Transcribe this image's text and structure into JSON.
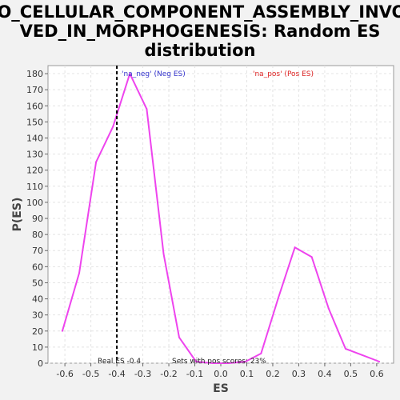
{
  "chart_data": {
    "type": "line",
    "title_lines": [
      "GO_CELLULAR_COMPONENT_ASSEMBLY_INVOL",
      "VED_IN_MORPHOGENESIS: Random ES",
      "distribution"
    ],
    "xlabel": "ES",
    "ylabel": "P(ES)",
    "xlim": [
      -0.665,
      0.665
    ],
    "ylim": [
      0,
      185
    ],
    "x_ticks": [
      -0.6,
      -0.5,
      -0.4,
      -0.3,
      -0.2,
      -0.1,
      0.0,
      0.1,
      0.2,
      0.3,
      0.4,
      0.5,
      0.6
    ],
    "x_tick_labels": [
      "-0.6",
      "-0.5",
      "-0.4",
      "-0.3",
      "-0.2",
      "-0.1",
      "0.0",
      "0.1",
      "0.2",
      "0.3",
      "0.4",
      "0.5",
      "0.6"
    ],
    "y_ticks": [
      0,
      10,
      20,
      30,
      40,
      50,
      60,
      70,
      80,
      90,
      100,
      110,
      120,
      130,
      140,
      150,
      160,
      170,
      180
    ],
    "y_tick_labels": [
      "0",
      "10",
      "20",
      "30",
      "40",
      "50",
      "60",
      "70",
      "80",
      "90",
      "100",
      "110",
      "120",
      "130",
      "140",
      "150",
      "160",
      "170",
      "180"
    ],
    "grid": true,
    "series": [
      {
        "color": "#ee44ee",
        "x": [
          -0.61,
          -0.545,
          -0.48,
          -0.415,
          -0.35,
          -0.285,
          -0.22,
          -0.16,
          -0.095,
          -0.03,
          0.03,
          0.095,
          0.155,
          0.22,
          0.285,
          0.35,
          0.415,
          0.48,
          0.545,
          0.61
        ],
        "y": [
          20,
          56,
          125,
          147,
          180,
          158,
          68,
          16,
          1,
          0,
          0,
          1,
          6,
          40,
          72,
          66,
          34,
          9,
          5,
          1
        ]
      }
    ],
    "real_es_line": {
      "x": -0.4,
      "color": "#000000"
    },
    "legend": {
      "neg_label": "'na_neg' (Neg ES)",
      "pos_label": "'na_pos' (Pos ES)",
      "neg_color": "#3333cc",
      "pos_color": "#dd2222"
    },
    "annotations": {
      "real_es": "Real ES -0.4",
      "pos_scores": "Sets with pos scores: 23%"
    }
  }
}
